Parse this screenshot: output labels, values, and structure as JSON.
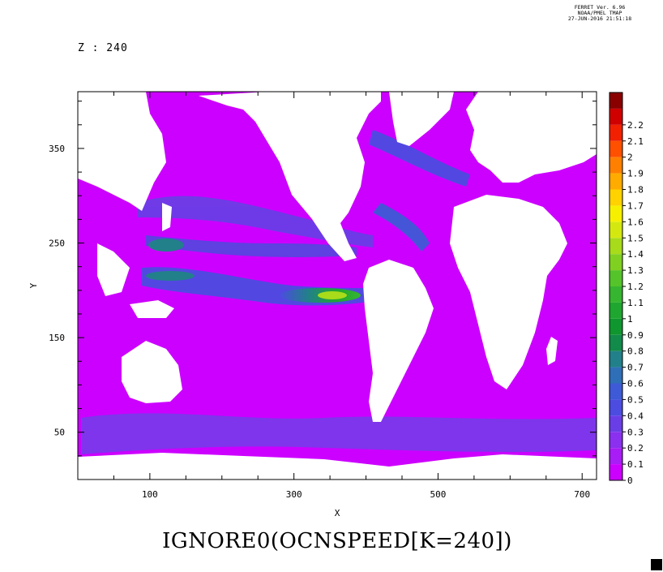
{
  "header": {
    "line1": "FERRET Ver. 6.96",
    "line2": "NOAA/PMEL TMAP",
    "line3": "27-JUN-2016 21:51:18"
  },
  "z_label": "Z : 240",
  "chart_data": {
    "type": "heatmap",
    "title": "IGNORE0(OCNSPEED[K=240])",
    "xlabel": "X",
    "ylabel": "Y",
    "xlim": [
      0,
      720
    ],
    "ylim": [
      0,
      410
    ],
    "x_ticks": [
      100,
      300,
      500,
      700
    ],
    "y_ticks": [
      50,
      150,
      250,
      350
    ],
    "colorbar": {
      "levels": [
        "0",
        "0.1",
        "0.2",
        "0.3",
        "0.4",
        "0.5",
        "0.6",
        "0.7",
        "0.8",
        "0.9",
        "1",
        "1.1",
        "1.2",
        "1.3",
        "1.4",
        "1.5",
        "1.6",
        "1.7",
        "1.8",
        "1.9",
        "2",
        "2.1",
        "2.2"
      ],
      "colors": [
        "#cc00ff",
        "#a81cf5",
        "#8a30ee",
        "#6a3ee6",
        "#4c4ce0",
        "#3e5ad6",
        "#2f6fb8",
        "#22808a",
        "#128a4a",
        "#10962e",
        "#1fa630",
        "#36b530",
        "#55c42a",
        "#80d022",
        "#a8db1a",
        "#d4e810",
        "#f6f000",
        "#ffd200",
        "#ffab00",
        "#ff8000",
        "#ff5000",
        "#f02000",
        "#d00000",
        "#8a0000"
      ]
    }
  }
}
